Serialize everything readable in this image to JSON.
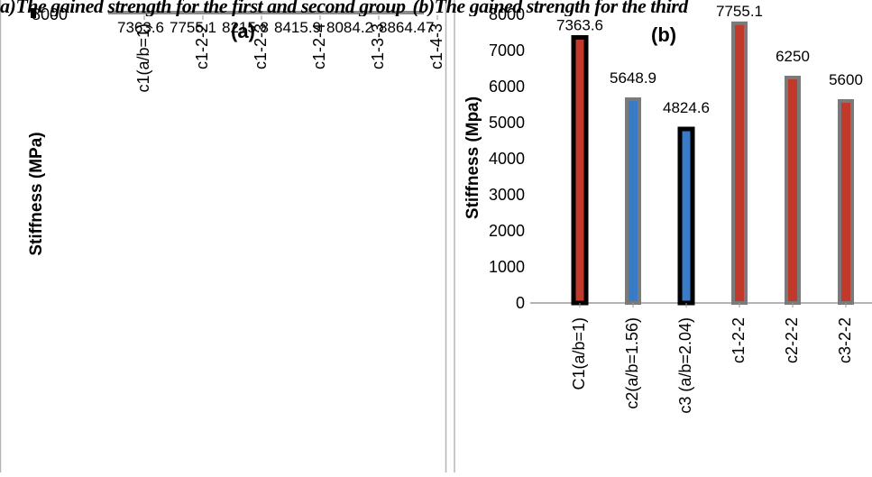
{
  "header": {
    "left_caption": "a)The gained strength for the first and second group",
    "right_caption": "(b)The gained strength for the third"
  },
  "chart_data": [
    {
      "type": "bar",
      "panel_label": "(a)",
      "ylabel": "Stiffness (MPa)",
      "ytick_top": "8000",
      "categories": [
        "c1(a/b=1)",
        "c1-2-2",
        "c1-2-3",
        "c1-2-4",
        "c1-3-3",
        "c1-4-3"
      ],
      "values": [
        7363.6,
        7755.1,
        8215.8,
        8415.9,
        8084.2,
        8864.47
      ],
      "data_labels": [
        "7363.6",
        "7755.1",
        "8215.8",
        "8415.9",
        "8084.2",
        "8864.47"
      ],
      "grid": false
    },
    {
      "type": "bar",
      "panel_label": "(b)",
      "ylabel": "Stiffness (Mpa)",
      "ylim": [
        0,
        8000
      ],
      "yticks": [
        0,
        1000,
        2000,
        3000,
        4000,
        5000,
        6000,
        7000,
        8000
      ],
      "categories": [
        "C1(a/b=1)",
        "c2(a/b=1.56)",
        "c3 (a/b=2.04)",
        "c1-2-2",
        "c2-2-2",
        "c3-2-2"
      ],
      "values": [
        7363.6,
        5648.9,
        4824.6,
        7755.1,
        6250,
        5600
      ],
      "data_labels": [
        "7363.6",
        "5648.9",
        "4824.6",
        "7755.1",
        "6250",
        "5600"
      ],
      "colors": [
        "#c0392b",
        "#3a7bc8",
        "#3a7bc8",
        "#c0392b",
        "#c0392b",
        "#c0392b"
      ],
      "outlines": [
        "#000000",
        "#7a7a7a",
        "#000000",
        "#7a7a7a",
        "#7a7a7a",
        "#7a7a7a"
      ],
      "grid": false
    }
  ]
}
